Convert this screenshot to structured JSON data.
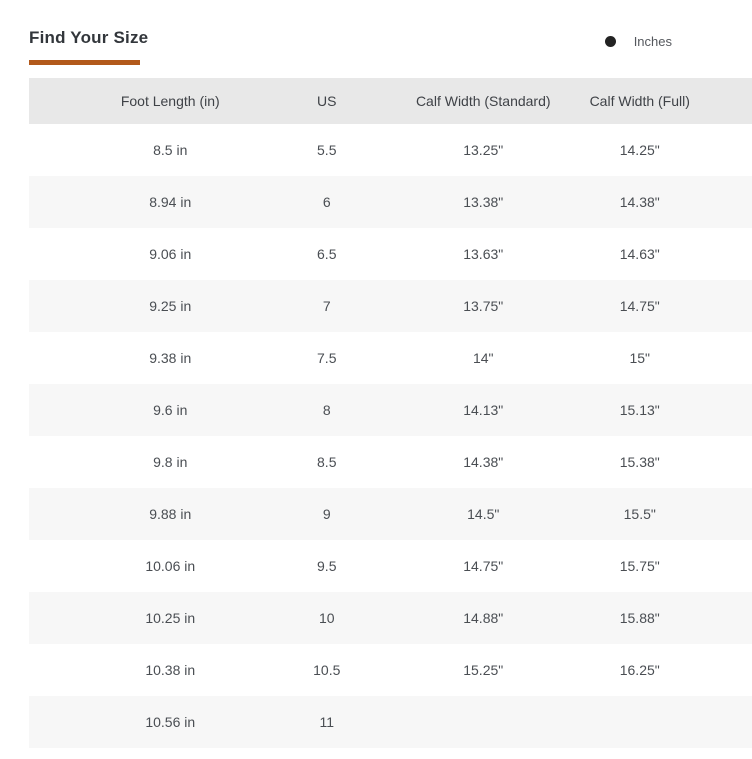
{
  "header": {
    "title": "Find Your Size",
    "unit_toggle": {
      "selected_label": "Inches",
      "selected": true
    }
  },
  "table": {
    "columns": [
      "Foot Length (in)",
      "US",
      "Calf Width (Standard)",
      "Calf Width (Full)"
    ],
    "rows": [
      [
        "8.5 in",
        "5.5",
        "13.25\"",
        "14.25\""
      ],
      [
        "8.94 in",
        "6",
        "13.38\"",
        "14.38\""
      ],
      [
        "9.06 in",
        "6.5",
        "13.63\"",
        "14.63\""
      ],
      [
        "9.25 in",
        "7",
        "13.75\"",
        "14.75\""
      ],
      [
        "9.38 in",
        "7.5",
        "14\"",
        "15\""
      ],
      [
        "9.6 in",
        "8",
        "14.13\"",
        "15.13\""
      ],
      [
        "9.8 in",
        "8.5",
        "14.38\"",
        "15.38\""
      ],
      [
        "9.88 in",
        "9",
        "14.5\"",
        "15.5\""
      ],
      [
        "10.06 in",
        "9.5",
        "14.75\"",
        "15.75\""
      ],
      [
        "10.25 in",
        "10",
        "14.88\"",
        "15.88\""
      ],
      [
        "10.38 in",
        "10.5",
        "15.25\"",
        "16.25\""
      ],
      [
        "10.56 in",
        "11",
        "",
        ""
      ]
    ]
  },
  "colors": {
    "accent": "#b2591b",
    "header_bg": "#e8e8e8",
    "row_alt_bg": "#f7f7f7",
    "radio_fill": "#232323"
  }
}
